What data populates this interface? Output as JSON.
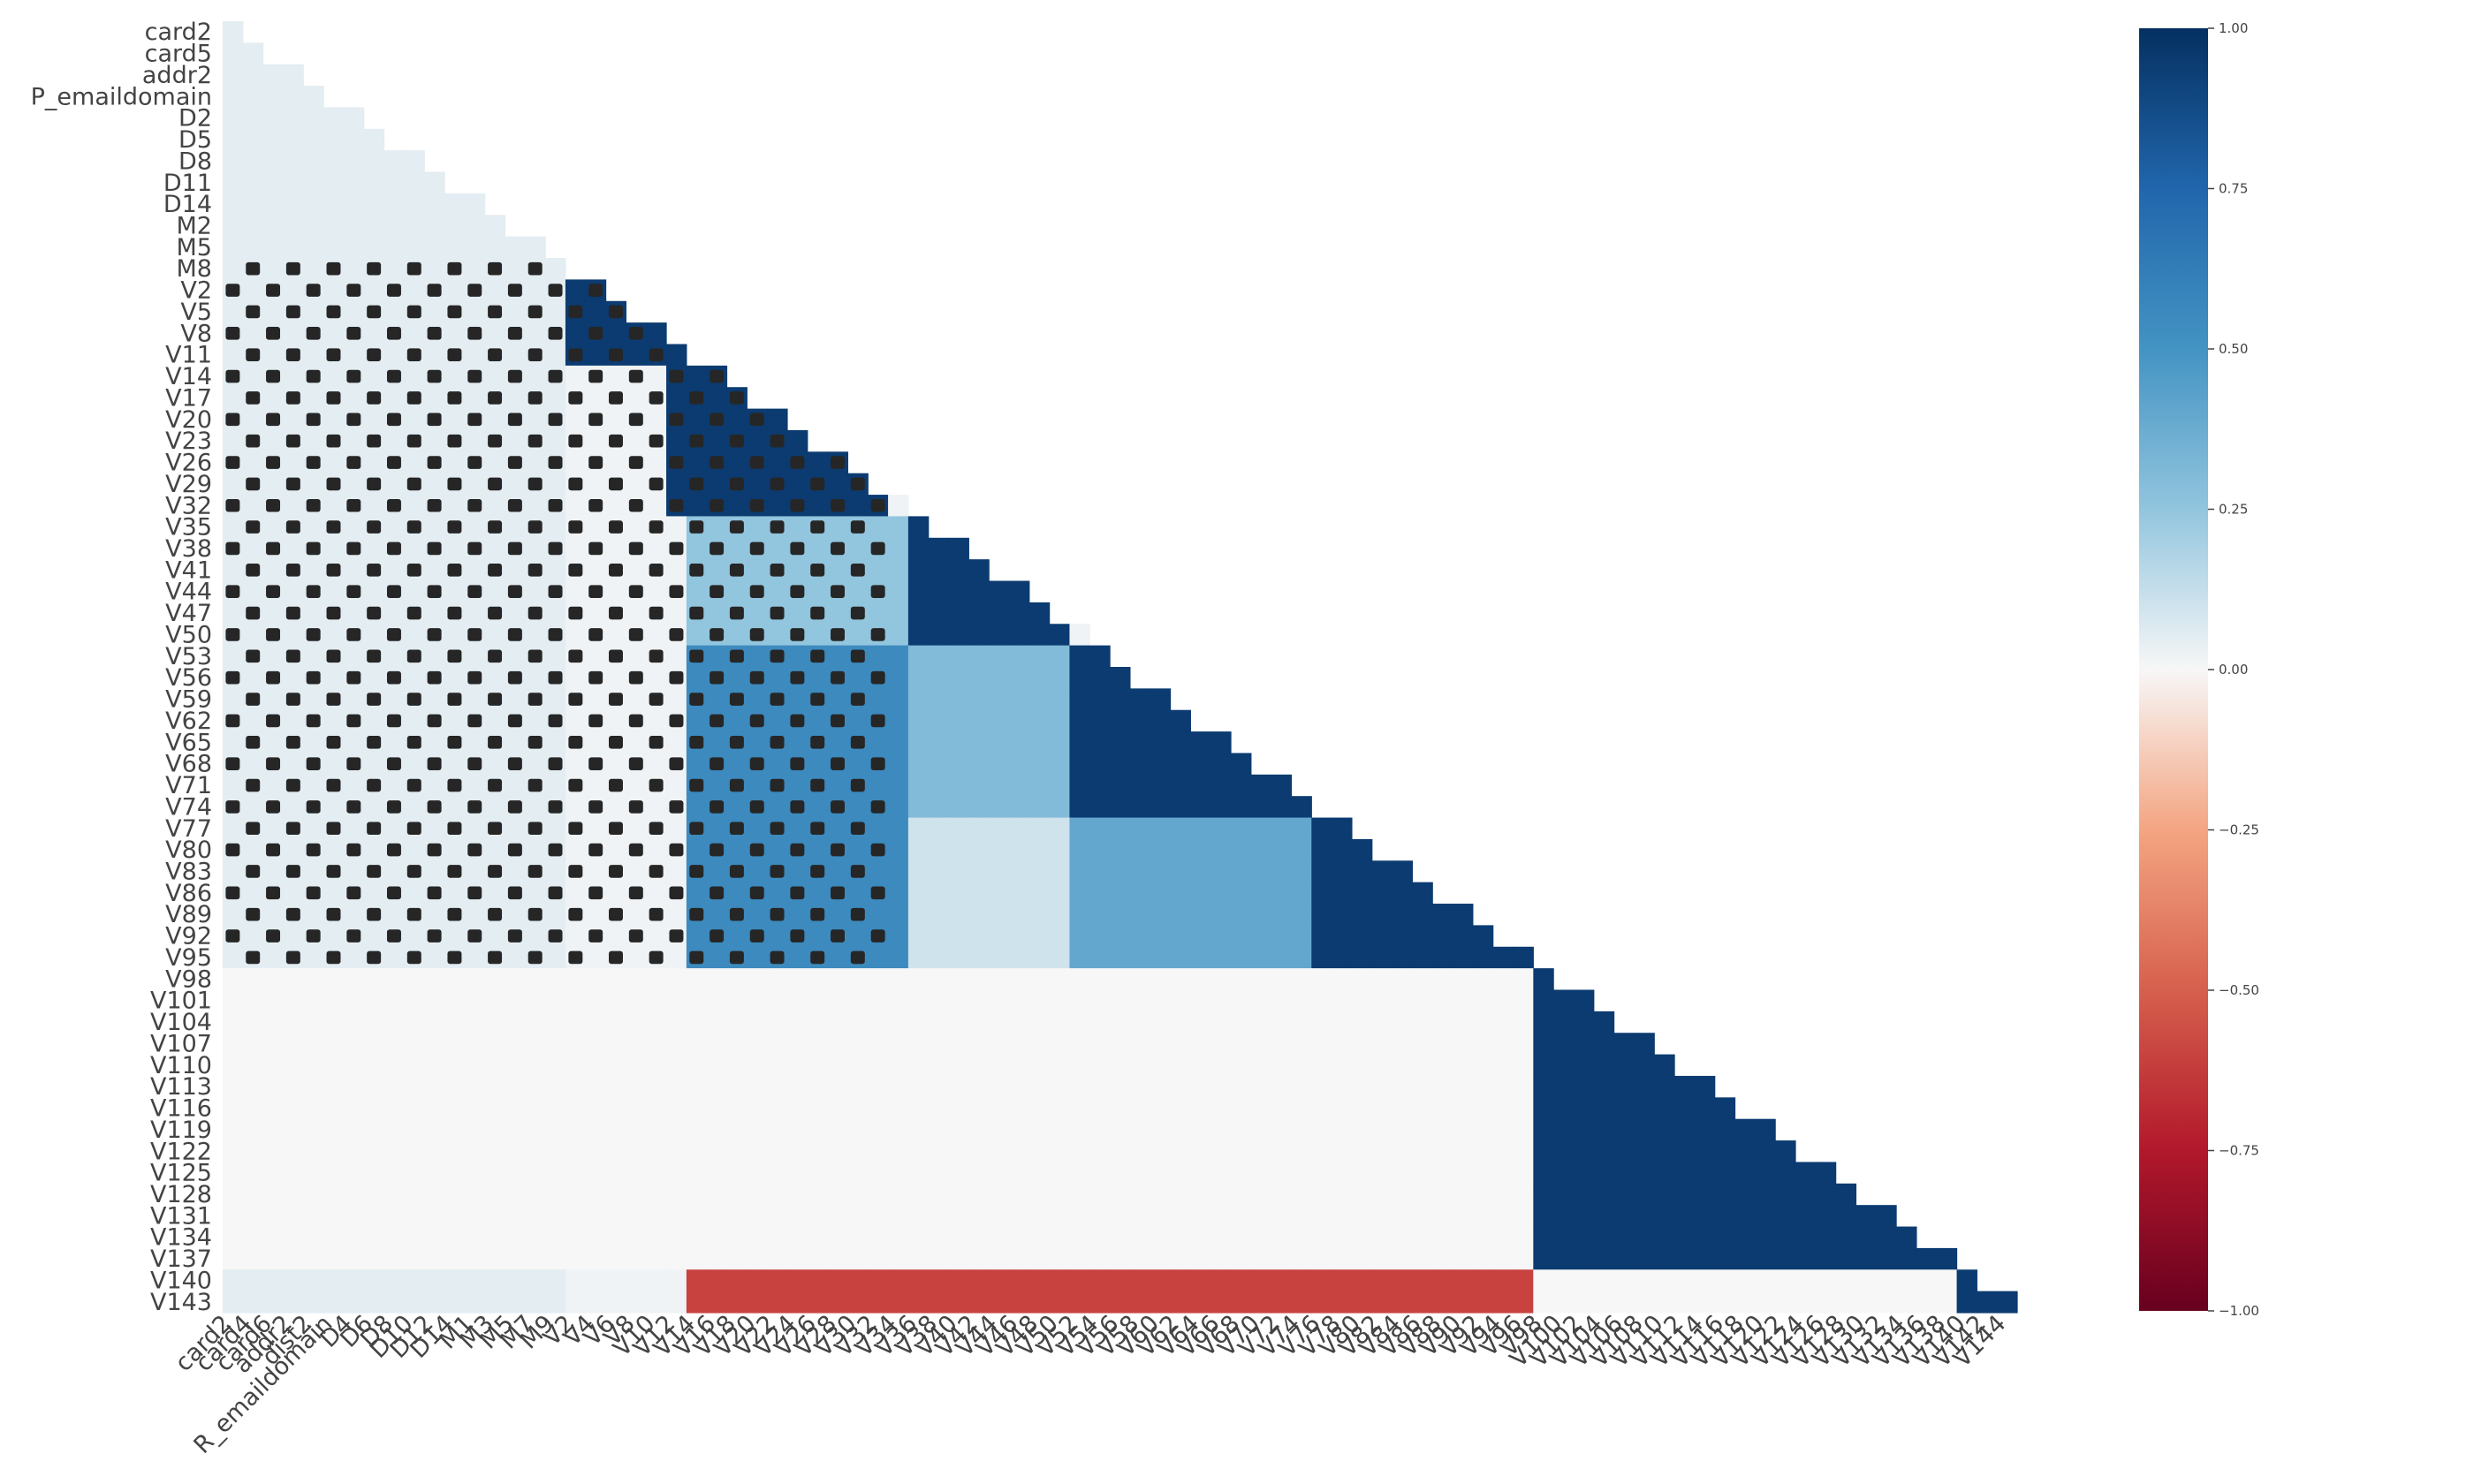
{
  "chart_data": {
    "type": "heatmap",
    "title": "",
    "xlabel": "",
    "ylabel": "",
    "mask": "upper-triangle",
    "colormap": "RdBu",
    "vmin": -1.0,
    "vmax": 1.0,
    "colorbar_ticks": [
      "1.00",
      "0.75",
      "0.50",
      "0.25",
      "0.00",
      "−0.25",
      "−0.50",
      "−0.75",
      "−1.00"
    ],
    "colorbar_tick_values": [
      1.0,
      0.75,
      0.5,
      0.25,
      0.0,
      -0.25,
      -0.5,
      -0.75,
      -1.0
    ],
    "y_tick_labels": [
      "card2",
      "card5",
      "addr2",
      "P_emaildomain",
      "D2",
      "D5",
      "D8",
      "D11",
      "D14",
      "M2",
      "M5",
      "M8",
      "V2",
      "V5",
      "V8",
      "V11",
      "V14",
      "V17",
      "V20",
      "V23",
      "V26",
      "V29",
      "V32",
      "V35",
      "V38",
      "V41",
      "V44",
      "V47",
      "V50",
      "V53",
      "V56",
      "V59",
      "V62",
      "V65",
      "V68",
      "V71",
      "V74",
      "V77",
      "V80",
      "V83",
      "V86",
      "V89",
      "V92",
      "V95",
      "V98",
      "V101",
      "V104",
      "V107",
      "V110",
      "V113",
      "V116",
      "V119",
      "V122",
      "V125",
      "V128",
      "V131",
      "V134",
      "V137",
      "V140",
      "V143"
    ],
    "x_tick_labels": [
      "card2",
      "card4",
      "card6",
      "addr2",
      "dist2",
      "R_emaildomain",
      "D4",
      "D6",
      "D8",
      "D10",
      "D12",
      "D14",
      "M1",
      "M3",
      "M5",
      "M7",
      "M9",
      "V2",
      "V4",
      "V6",
      "V8",
      "V10",
      "V12",
      "V14",
      "V16",
      "V18",
      "V20",
      "V22",
      "V24",
      "V26",
      "V28",
      "V30",
      "V32",
      "V34",
      "V36",
      "V38",
      "V40",
      "V42",
      "V44",
      "V46",
      "V48",
      "V50",
      "V52",
      "V54",
      "V56",
      "V58",
      "V60",
      "V62",
      "V64",
      "V66",
      "V68",
      "V70",
      "V72",
      "V74",
      "V76",
      "V78",
      "V80",
      "V82",
      "V84",
      "V86",
      "V88",
      "V90",
      "V92",
      "V94",
      "V96",
      "V98",
      "V100",
      "V102",
      "V104",
      "V106",
      "V108",
      "V110",
      "V112",
      "V114",
      "V116",
      "V118",
      "V120",
      "V122",
      "V124",
      "V126",
      "V128",
      "V130",
      "V132",
      "V134",
      "V136",
      "V138",
      "V140",
      "V142",
      "V144"
    ],
    "blocks": [
      {
        "rows": [
          "V2",
          "V11"
        ],
        "cols": [
          "V2",
          "V11"
        ],
        "value": 0.95
      },
      {
        "rows": [
          "V11",
          "V32"
        ],
        "cols": [
          "V12",
          "V32"
        ],
        "value": 0.95
      },
      {
        "rows": [
          "V35",
          "V50"
        ],
        "cols": [
          "V14",
          "V34"
        ],
        "value": 0.25
      },
      {
        "rows": [
          "V35",
          "V50"
        ],
        "cols": [
          "V36",
          "V50"
        ],
        "value": 0.95
      },
      {
        "rows": [
          "V53",
          "V74"
        ],
        "cols": [
          "V14",
          "V34"
        ],
        "value": 0.55
      },
      {
        "rows": [
          "V53",
          "V74"
        ],
        "cols": [
          "V36",
          "V50"
        ],
        "value": 0.3
      },
      {
        "rows": [
          "V53",
          "V74"
        ],
        "cols": [
          "V52",
          "V74"
        ],
        "value": 0.95
      },
      {
        "rows": [
          "V77",
          "V95"
        ],
        "cols": [
          "V14",
          "V34"
        ],
        "value": 0.55
      },
      {
        "rows": [
          "V77",
          "V95"
        ],
        "cols": [
          "V36",
          "V50"
        ],
        "value": 0.1
      },
      {
        "rows": [
          "V77",
          "V95"
        ],
        "cols": [
          "V52",
          "V74"
        ],
        "value": 0.4
      },
      {
        "rows": [
          "V77",
          "V95"
        ],
        "cols": [
          "V76",
          "V96"
        ],
        "value": 0.95
      },
      {
        "rows": [
          "V98",
          "V137"
        ],
        "cols": [
          "V98",
          "V138"
        ],
        "value": 0.95
      },
      {
        "rows": [
          "V98",
          "V137"
        ],
        "cols": [
          "card2",
          "V96"
        ],
        "value": 0.0
      },
      {
        "rows": [
          "V140",
          "V143"
        ],
        "cols": [
          "V14",
          "V96"
        ],
        "value": -0.6
      },
      {
        "rows": [
          "V140",
          "V143"
        ],
        "cols": [
          "V98",
          "V138"
        ],
        "value": 0.0
      },
      {
        "rows": [
          "V140",
          "V143"
        ],
        "cols": [
          "V140",
          "V144"
        ],
        "value": 0.95
      }
    ]
  }
}
